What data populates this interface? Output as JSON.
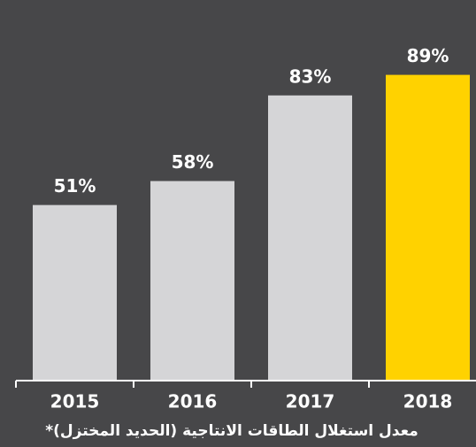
{
  "chart_data": {
    "type": "bar",
    "categories": [
      "2015",
      "2016",
      "2017",
      "2018"
    ],
    "values": [
      51,
      58,
      83,
      89
    ],
    "value_labels": [
      "51%",
      "58%",
      "83%",
      "89%"
    ],
    "colors": [
      "#d5d5d7",
      "#d5d5d7",
      "#d5d5d7",
      "#ffd200"
    ],
    "ylim": [
      0,
      100
    ],
    "caption": "معدل استغلال الطاقات الانتاجية (الحديد المختزل)*"
  }
}
